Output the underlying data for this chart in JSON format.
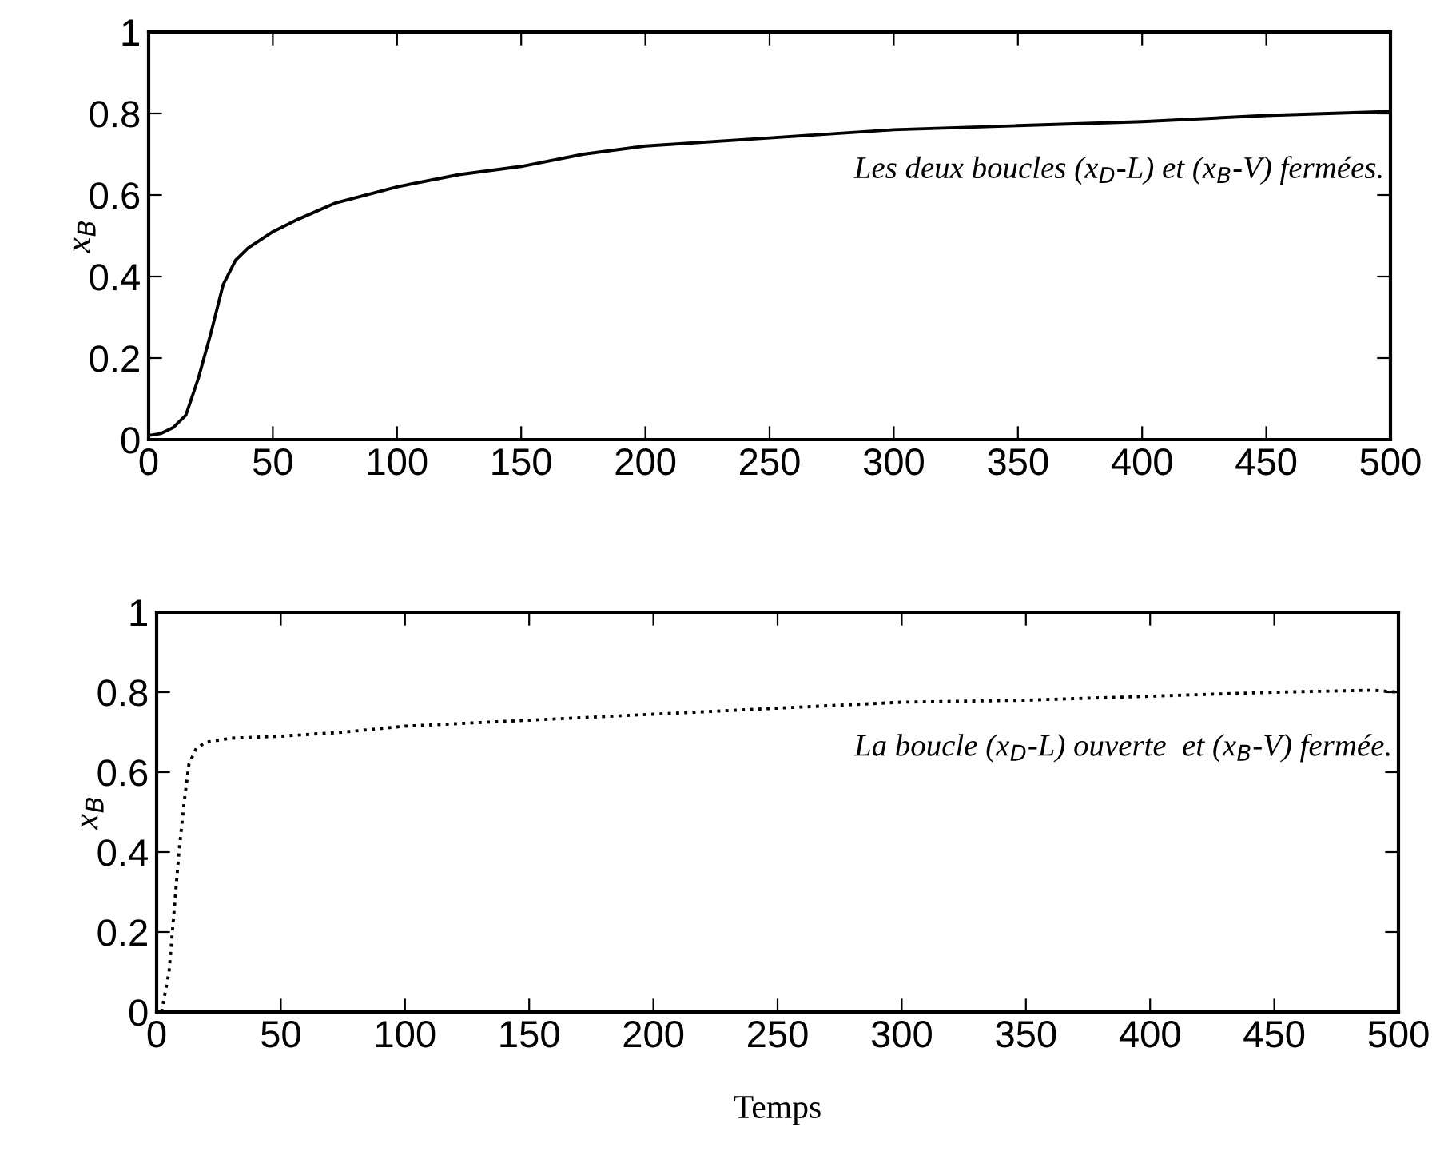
{
  "chart_data": [
    {
      "type": "line",
      "ylabel": "x$_{B}$",
      "annotations": [
        "Les deux boucles (x$_{D}$-L) et (x$_{B}$-V) fermées."
      ],
      "line_style": "solid",
      "grid": false,
      "legend": false,
      "series": [
        {
          "color": "#000000",
          "x": [
            0,
            5,
            10,
            15,
            20,
            25,
            30,
            35,
            40,
            50,
            60,
            75,
            100,
            125,
            150,
            175,
            200,
            250,
            300,
            350,
            400,
            450,
            500
          ],
          "values": [
            0.01,
            0.015,
            0.03,
            0.06,
            0.15,
            0.26,
            0.38,
            0.44,
            0.47,
            0.51,
            0.54,
            0.58,
            0.62,
            0.65,
            0.67,
            0.7,
            0.72,
            0.74,
            0.76,
            0.77,
            0.78,
            0.795,
            0.805
          ]
        }
      ],
      "xlim": [
        0,
        500
      ],
      "ylim": [
        0,
        1
      ],
      "xticks": [
        0,
        50,
        100,
        150,
        200,
        250,
        300,
        350,
        400,
        450,
        500
      ],
      "yticks": [
        0,
        0.2,
        0.4,
        0.6,
        0.8,
        1
      ]
    },
    {
      "type": "line",
      "ylabel": "x$_{B}$",
      "xlabel": "Temps",
      "annotations": [
        "La boucle (x$_{D}$-L) ouverte  et (x$_{B}$-V) fermée."
      ],
      "line_style": "dotted",
      "grid": false,
      "legend": false,
      "series": [
        {
          "color": "#000000",
          "x": [
            2,
            5,
            7,
            9,
            11,
            13,
            16,
            20,
            30,
            50,
            75,
            100,
            150,
            200,
            250,
            300,
            350,
            400,
            450,
            490,
            500
          ],
          "values": [
            0,
            0.1,
            0.25,
            0.4,
            0.52,
            0.62,
            0.66,
            0.675,
            0.685,
            0.69,
            0.7,
            0.715,
            0.73,
            0.745,
            0.76,
            0.775,
            0.78,
            0.79,
            0.8,
            0.805,
            0.8
          ]
        }
      ],
      "xlim": [
        0,
        500
      ],
      "ylim": [
        0,
        1
      ],
      "xticks": [
        0,
        50,
        100,
        150,
        200,
        250,
        300,
        350,
        400,
        450,
        500
      ],
      "yticks": [
        0,
        0.2,
        0.4,
        0.6,
        0.8,
        1
      ]
    }
  ]
}
